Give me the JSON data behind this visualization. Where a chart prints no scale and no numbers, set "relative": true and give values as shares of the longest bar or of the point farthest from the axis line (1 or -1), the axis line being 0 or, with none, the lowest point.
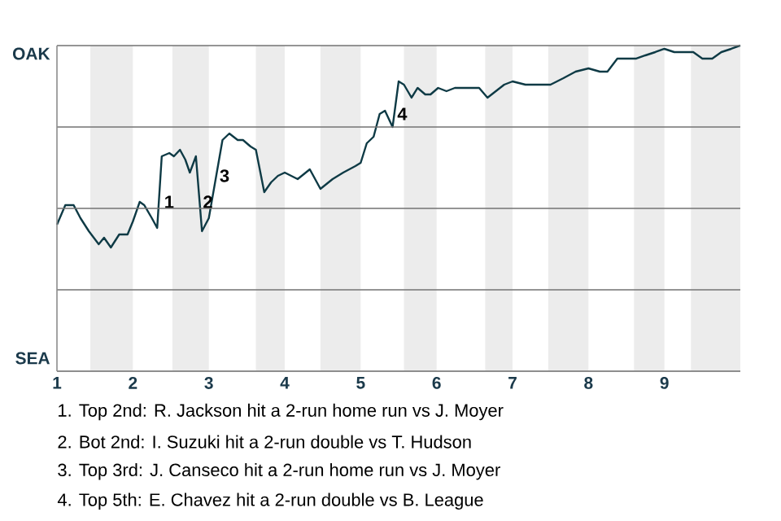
{
  "chart_data": {
    "type": "line",
    "color": "#0e3a45",
    "relative": true,
    "x": [
      1,
      1.11,
      1.22,
      1.31,
      1.42,
      1.55,
      1.62,
      1.71,
      1.82,
      1.93,
      2,
      2.09,
      2.15,
      2.25,
      2.32,
      2.38,
      2.48,
      2.54,
      2.62,
      2.69,
      2.75,
      2.83,
      2.91,
      3,
      3.18,
      3.27,
      3.38,
      3.45,
      3.55,
      3.62,
      3.73,
      3.82,
      3.91,
      4,
      4.17,
      4.33,
      4.47,
      4.63,
      4.77,
      4.93,
      5,
      5.08,
      5.17,
      5.25,
      5.32,
      5.42,
      5.5,
      5.57,
      5.67,
      5.75,
      5.85,
      5.92,
      6.02,
      6.13,
      6.24,
      6.56,
      6.67,
      6.78,
      6.89,
      7,
      7.17,
      7.5,
      7.67,
      7.83,
      8,
      8.15,
      8.25,
      8.38,
      8.5,
      8.63,
      8.75,
      8.88,
      9,
      9.13,
      9.38,
      9.5,
      9.63,
      9.75,
      9.88,
      10
    ],
    "values": [
      0.45,
      0.51,
      0.51,
      0.47,
      0.43,
      0.39,
      0.41,
      0.38,
      0.42,
      0.42,
      0.46,
      0.52,
      0.51,
      0.47,
      0.44,
      0.66,
      0.67,
      0.66,
      0.68,
      0.65,
      0.61,
      0.66,
      0.43,
      0.47,
      0.71,
      0.73,
      0.71,
      0.71,
      0.69,
      0.68,
      0.55,
      0.58,
      0.6,
      0.61,
      0.59,
      0.62,
      0.56,
      0.59,
      0.61,
      0.63,
      0.64,
      0.7,
      0.72,
      0.79,
      0.8,
      0.75,
      0.89,
      0.88,
      0.84,
      0.87,
      0.85,
      0.85,
      0.87,
      0.86,
      0.87,
      0.87,
      0.84,
      0.86,
      0.88,
      0.89,
      0.88,
      0.88,
      0.9,
      0.92,
      0.93,
      0.92,
      0.92,
      0.96,
      0.96,
      0.96,
      0.97,
      0.98,
      0.99,
      0.98,
      0.98,
      0.96,
      0.96,
      0.98,
      0.99,
      1.0
    ],
    "xlim": [
      1,
      10
    ],
    "xticks": [
      1,
      2,
      3,
      4,
      5,
      6,
      7,
      8,
      9
    ],
    "grid": "y",
    "bands": [
      {
        "axis": "x",
        "from": 1.44,
        "to": 2,
        "color": "#ececec"
      },
      {
        "axis": "x",
        "from": 2.52,
        "to": 3,
        "color": "#ececec"
      },
      {
        "axis": "x",
        "from": 3.62,
        "to": 4,
        "color": "#ececec"
      },
      {
        "axis": "x",
        "from": 4.47,
        "to": 5,
        "color": "#ececec"
      },
      {
        "axis": "x",
        "from": 5.57,
        "to": 6,
        "color": "#ececec"
      },
      {
        "axis": "x",
        "from": 6.64,
        "to": 7,
        "color": "#ececec"
      },
      {
        "axis": "x",
        "from": 7.47,
        "to": 8,
        "color": "#ececec"
      },
      {
        "axis": "x",
        "from": 8.6,
        "to": 9,
        "color": "#ececec"
      },
      {
        "axis": "x",
        "from": 9.35,
        "to": 10,
        "color": "#ececec"
      }
    ],
    "annotations": [
      {
        "text": "1",
        "x": 2.37,
        "y": 0.52
      },
      {
        "text": "2",
        "x": 2.88,
        "y": 0.52
      },
      {
        "text": "3",
        "x": 3.1,
        "y": 0.6
      },
      {
        "text": "4",
        "x": 5.44,
        "y": 0.79
      },
      "OAK",
      "SEA",
      "1. Top 2nd: R. Jackson hit a 2-run home run vs J. Moyer",
      "2. Bot 2nd: I. Suzuki hit a 2-run double vs T. Hudson",
      "3. Top 3rd: J. Canseco hit a 2-run home run vs J. Moyer",
      "4. Top 5th: E. Chavez hit a 2-run double vs B. League"
    ]
  }
}
